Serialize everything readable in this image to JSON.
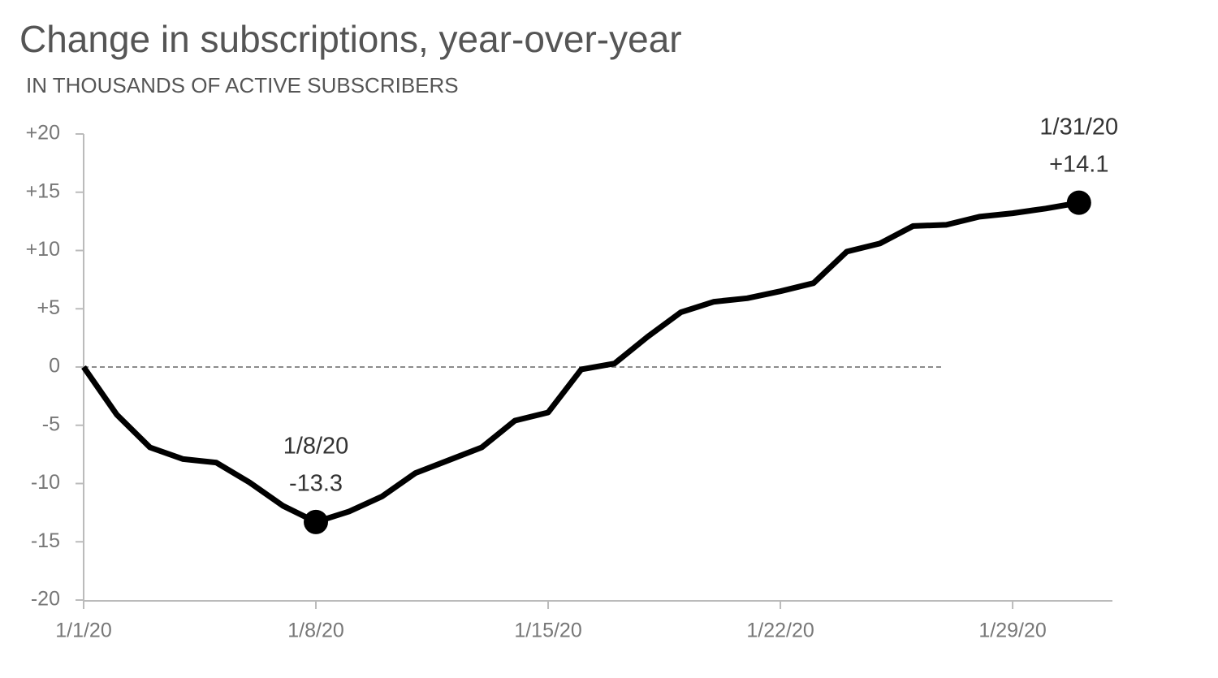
{
  "chart_data": {
    "type": "line",
    "title": "Change in subscriptions, year-over-year",
    "subtitle": "IN THOUSANDS OF ACTIVE SUBSCRIBERS",
    "x": [
      "1/1/20",
      "1/2/20",
      "1/3/20",
      "1/4/20",
      "1/5/20",
      "1/6/20",
      "1/7/20",
      "1/8/20",
      "1/9/20",
      "1/10/20",
      "1/11/20",
      "1/12/20",
      "1/13/20",
      "1/14/20",
      "1/15/20",
      "1/16/20",
      "1/17/20",
      "1/18/20",
      "1/19/20",
      "1/20/20",
      "1/21/20",
      "1/22/20",
      "1/23/20",
      "1/24/20",
      "1/25/20",
      "1/26/20",
      "1/27/20",
      "1/28/20",
      "1/29/20",
      "1/30/20",
      "1/31/20"
    ],
    "values": [
      0,
      -4.1,
      -6.9,
      -7.9,
      -8.2,
      -9.9,
      -11.9,
      -13.3,
      -12.4,
      -11.1,
      -9.1,
      -8.0,
      -6.9,
      -4.6,
      -3.9,
      -0.2,
      0.3,
      2.6,
      4.7,
      5.6,
      5.9,
      6.5,
      7.2,
      9.9,
      10.6,
      12.1,
      12.2,
      12.9,
      13.2,
      13.6,
      14.1
    ],
    "color": "#000000",
    "xticks": [
      "1/1/20",
      "1/8/20",
      "1/15/20",
      "1/22/20",
      "1/29/20"
    ],
    "ylim": [
      -20,
      20
    ],
    "yticks": [
      {
        "value": 20,
        "label": "+20"
      },
      {
        "value": 15,
        "label": "+15"
      },
      {
        "value": 10,
        "label": "+10"
      },
      {
        "value": 5,
        "label": "+5"
      },
      0,
      -5,
      -10,
      -15,
      -20
    ],
    "zero_line": true,
    "annotations": [
      {
        "x": "1/8/20",
        "y": -13.3,
        "label": "-13.3"
      },
      {
        "x": "1/31/20",
        "y": 14.1,
        "label": "+14.1"
      }
    ]
  }
}
